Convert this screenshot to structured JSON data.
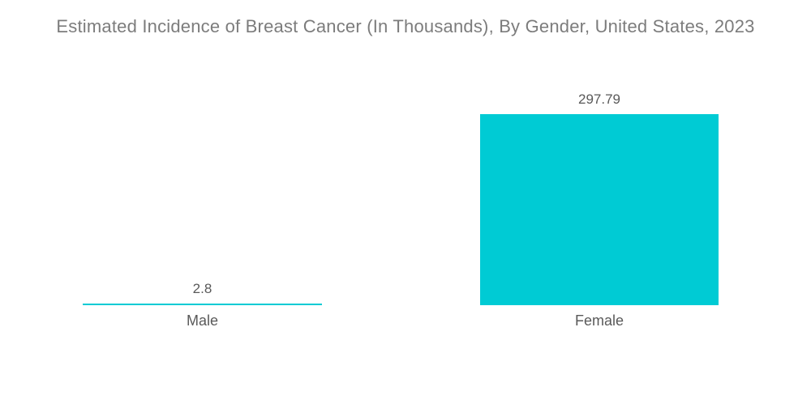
{
  "chart_data": {
    "type": "bar",
    "title": "Estimated Incidence of Breast Cancer (In Thousands), By Gender, United States, 2023",
    "categories": [
      "Male",
      "Female"
    ],
    "values": [
      2.8,
      297.79
    ],
    "value_labels": [
      "2.8",
      "297.79"
    ],
    "xlabel": "",
    "ylabel": "",
    "ylim": [
      0,
      297.79
    ],
    "grid": false,
    "legend": "none",
    "bar_color": "#00cbd4"
  },
  "colors": {
    "background": "#ffffff",
    "bar": "#00cbd4",
    "title_text": "#7c7c7c",
    "label_text": "#595959"
  }
}
